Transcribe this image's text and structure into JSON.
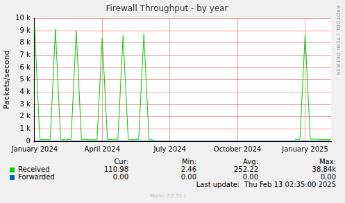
{
  "chart_data": {
    "type": "line",
    "title": "Firewall Throughput - by year",
    "y_label": "Packets/second",
    "side_text": "RRDTOOL / TOBI OETIKER",
    "categories": [
      "January 2024",
      null,
      null,
      null,
      null,
      null,
      null,
      null,
      null,
      null,
      null,
      null,
      null,
      "April 2024",
      null,
      null,
      null,
      null,
      null,
      null,
      null,
      null,
      null,
      null,
      null,
      null,
      "July 2024",
      null,
      null,
      null,
      null,
      null,
      null,
      null,
      null,
      null,
      null,
      null,
      null,
      "October 2024",
      null,
      null,
      null,
      null,
      null,
      null,
      null,
      null,
      null,
      null,
      null,
      null,
      "January 2025",
      null,
      null,
      null,
      null,
      null
    ],
    "series": [
      {
        "name": "Received",
        "color": "#00CC00",
        "values": [
          9300,
          150,
          130,
          140,
          9100,
          140,
          120,
          150,
          9000,
          130,
          140,
          120,
          130,
          8400,
          140,
          150,
          130,
          8600,
          120,
          140,
          130,
          8700,
          120,
          100,
          null,
          null,
          null,
          null,
          null,
          null,
          null,
          null,
          null,
          null,
          null,
          null,
          null,
          null,
          null,
          null,
          null,
          null,
          null,
          null,
          null,
          null,
          null,
          null,
          null,
          null,
          120,
          150,
          8700,
          170,
          160,
          150,
          140,
          130
        ]
      },
      {
        "name": "Forwarded",
        "color": "#0066B3",
        "values": [
          0,
          0,
          0,
          0,
          0,
          0,
          0,
          0,
          0,
          0,
          0,
          0,
          0,
          0,
          0,
          0,
          0,
          0,
          0,
          0,
          0,
          0,
          0,
          0,
          0,
          0,
          0,
          0,
          0,
          0,
          0,
          0,
          0,
          0,
          0,
          0,
          0,
          0,
          0,
          0,
          0,
          0,
          0,
          0,
          0,
          0,
          0,
          0,
          0,
          0,
          0,
          0,
          0,
          0,
          0,
          0,
          0,
          0
        ]
      }
    ],
    "ylim": [
      0,
      10000
    ],
    "yticks": [
      0,
      {
        "value": 1000,
        "label": "1 k"
      },
      {
        "value": 2000,
        "label": "2 k"
      },
      {
        "value": 3000,
        "label": "3 k"
      },
      {
        "value": 4000,
        "label": "4 k"
      },
      {
        "value": 5000,
        "label": "5 k"
      },
      {
        "value": 6000,
        "label": "6 k"
      },
      {
        "value": 7000,
        "label": "7 k"
      },
      {
        "value": 8000,
        "label": "8 k"
      },
      {
        "value": 9000,
        "label": "9 k"
      },
      {
        "value": 10000,
        "label": "10 k"
      }
    ],
    "grid": true,
    "legend": "bottom",
    "legend_table": {
      "columns": [
        "Cur:",
        "Min:",
        "Avg:",
        "Max:"
      ],
      "rows": [
        [
          "110.98",
          "2.46",
          "252.22",
          "38.84k"
        ],
        [
          "0.00",
          "0.00",
          "0.00",
          "0.00"
        ]
      ]
    },
    "last_update": "Last update:  Thu Feb 13 02:35:00 2025",
    "footer": "Munin 2.0.33-1"
  }
}
